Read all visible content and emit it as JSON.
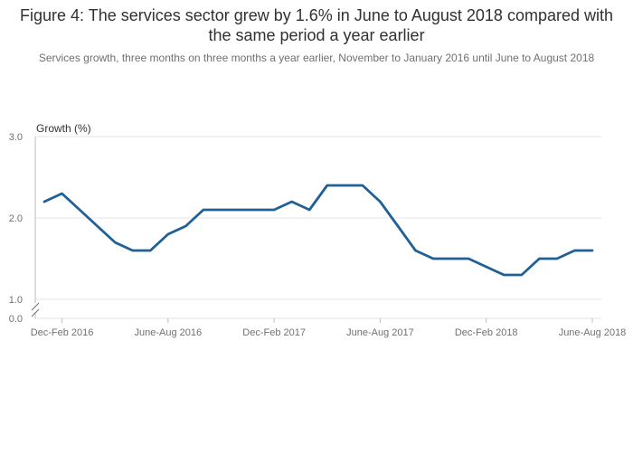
{
  "chart_data": {
    "type": "line",
    "title": "Figure 4: The services sector grew by 1.6% in June to August 2018 compared with the same period a year earlier",
    "subtitle": "Services growth, three months on three months a year earlier, November to January 2016 until June to August 2018",
    "ylabel": "Growth (%)",
    "xlabel": "",
    "ylim": [
      1.0,
      3.0
    ],
    "y_ticks": [
      "3.0",
      "2.0",
      "1.0"
    ],
    "y_zero_label": "0.0",
    "axis_break": true,
    "x": [
      "Nov-Jan 2016",
      "Dec-Feb 2016",
      "Jan-Mar 2016",
      "Feb-Apr 2016",
      "Mar-May 2016",
      "Apr-June 2016",
      "May-July 2016",
      "June-Aug 2016",
      "July-Sep 2016",
      "Aug-Oct 2016",
      "Sep-Nov 2016",
      "Oct-Dec 2016",
      "Nov-Jan 2017",
      "Dec-Feb 2017",
      "Jan-Mar 2017",
      "Feb-Apr 2017",
      "Mar-May 2017",
      "Apr-June 2017",
      "May-July 2017",
      "June-Aug 2017",
      "July-Sep 2017",
      "Aug-Oct 2017",
      "Sep-Nov 2017",
      "Oct-Dec 2017",
      "Nov-Jan 2018",
      "Dec-Feb 2018",
      "Jan-Mar 2018",
      "Feb-Apr 2018",
      "Mar-May 2018",
      "Apr-June 2018",
      "May-July 2018",
      "June-Aug 2018"
    ],
    "x_tick_labels": [
      "Dec-Feb 2016",
      "June-Aug 2016",
      "Dec-Feb 2017",
      "June-Aug 2017",
      "Dec-Feb 2018",
      "June-Aug 2018"
    ],
    "x_tick_indices": [
      1,
      7,
      13,
      19,
      25,
      31
    ],
    "series": [
      {
        "values": [
          2.2,
          2.3,
          2.1,
          1.9,
          1.7,
          1.6,
          1.6,
          1.8,
          1.9,
          2.1,
          2.1,
          2.1,
          2.1,
          2.1,
          2.2,
          2.1,
          2.4,
          2.4,
          2.4,
          2.2,
          1.9,
          1.6,
          1.5,
          1.5,
          1.5,
          1.4,
          1.3,
          1.3,
          1.5,
          1.5,
          1.6,
          1.6
        ],
        "color": "#206095"
      }
    ],
    "grid": true,
    "gridline_color": "#e6e6e6"
  }
}
